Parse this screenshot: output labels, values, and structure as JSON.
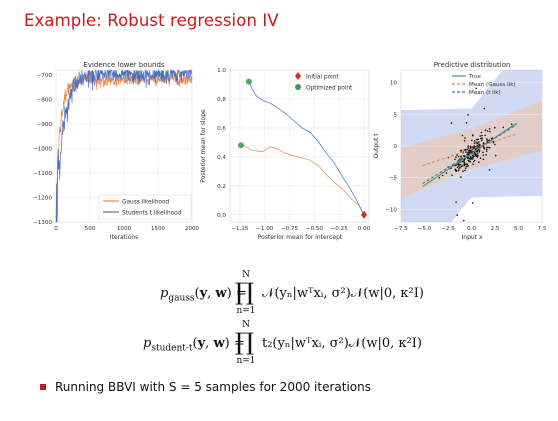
{
  "slide": {
    "title": "Example: Robust regression IV",
    "bullet": "Running BBVI with S = 5 samples for 2000 iterations"
  },
  "colors": {
    "gauss": "#e8854a",
    "student": "#4a6fc2",
    "title": "#c8191e",
    "true": "#3a9e5c",
    "band": "#aabbe8"
  },
  "equations": {
    "gauss_lhs": "p_gauss(y, w) =",
    "gauss_sub": "gauss",
    "student_sub": "student-t",
    "prod_top": "N",
    "prod_bottom": "n=1",
    "gauss_rhs": "𝒩(yₙ|wᵀxᵢ, σ²)𝒩(w|0, κ²I)",
    "student_rhs": "t₂(yₙ|wᵀxᵢ, σ²)𝒩(w|0, κ²I)"
  },
  "chart_data": [
    {
      "type": "line",
      "title": "Evidence lower bounds",
      "xlabel": "Iterations",
      "ylabel": "",
      "xlim": [
        0,
        2000
      ],
      "ylim": [
        -1300,
        -680
      ],
      "xticks": [
        0,
        500,
        1000,
        1500,
        2000
      ],
      "yticks": [
        -1300,
        -1200,
        -1100,
        -1000,
        -900,
        -800,
        -700
      ],
      "legend_position": "lower-right",
      "series": [
        {
          "name": "Gauss likelihood",
          "converged": -718,
          "start": -1240
        },
        {
          "name": "Students t likelihood",
          "converged": -697,
          "start": -1300
        }
      ]
    },
    {
      "type": "line",
      "title": "",
      "xlabel": "Posterior mean for intercept",
      "ylabel": "Posterior mean for slope",
      "xlim": [
        -1.35,
        0.05
      ],
      "ylim": [
        -0.05,
        1.0
      ],
      "xticks": [
        -1.25,
        -1.0,
        -0.75,
        -0.5,
        -0.25,
        0.0
      ],
      "xticklabels": [
        "−1.25",
        "−1.00",
        "−0.75",
        "−0.50",
        "−0.25",
        "0.00"
      ],
      "yticks": [
        0.0,
        0.2,
        0.4,
        0.6,
        0.8,
        1.0
      ],
      "legend_position": "top-right",
      "legend": [
        "Initial point",
        "Optimized point"
      ],
      "initial_point": [
        0.0,
        0.0
      ],
      "series": [
        {
          "name": "Gauss",
          "x": [
            0.0,
            -0.05,
            -0.12,
            -0.2,
            -0.3,
            -0.38,
            -0.45,
            -0.55,
            -0.65,
            -0.72,
            -0.8,
            -0.88,
            -0.95,
            -1.02,
            -1.08,
            -1.13,
            -1.18,
            -1.22,
            -1.24
          ],
          "y": [
            0.0,
            0.05,
            0.1,
            0.16,
            0.22,
            0.27,
            0.33,
            0.37,
            0.4,
            0.41,
            0.43,
            0.45,
            0.45,
            0.45,
            0.44,
            0.46,
            0.47,
            0.48,
            0.48
          ]
        },
        {
          "name": "Student-t",
          "x": [
            0.0,
            -0.05,
            -0.1,
            -0.16,
            -0.22,
            -0.3,
            -0.38,
            -0.46,
            -0.54,
            -0.62,
            -0.7,
            -0.78,
            -0.86,
            -0.94,
            -1.02,
            -1.08,
            -1.12,
            -1.15,
            -1.16
          ],
          "y": [
            0.0,
            0.06,
            0.13,
            0.2,
            0.27,
            0.36,
            0.43,
            0.5,
            0.56,
            0.61,
            0.66,
            0.7,
            0.74,
            0.77,
            0.79,
            0.82,
            0.86,
            0.9,
            0.92
          ]
        }
      ],
      "optimized_points": [
        [
          -1.24,
          0.48
        ],
        [
          -1.16,
          0.92
        ]
      ]
    },
    {
      "type": "scatter",
      "title": "Predictive distribution",
      "xlabel": "Input x",
      "ylabel": "Output t",
      "xlim": [
        -7.5,
        7.5
      ],
      "ylim": [
        -12,
        12
      ],
      "xticks": [
        -7.5,
        -5.0,
        -2.5,
        0.0,
        2.5,
        5.0,
        7.5
      ],
      "xticklabels": [
        "−7.5",
        "−5.0",
        "−2.5",
        "0.0",
        "2.5",
        "5.0",
        "7.5"
      ],
      "yticks": [
        -10,
        -5,
        0,
        5,
        10
      ],
      "legend_position": "top-right",
      "series": [
        {
          "name": "True",
          "slope": 1.0,
          "intercept": -1.2
        },
        {
          "name": "Mean  (Gauss lik)",
          "slope": 0.5,
          "intercept": -0.5
        },
        {
          "name": "Mean (t lik)",
          "slope": 0.93,
          "intercept": -1.1
        }
      ]
    }
  ]
}
